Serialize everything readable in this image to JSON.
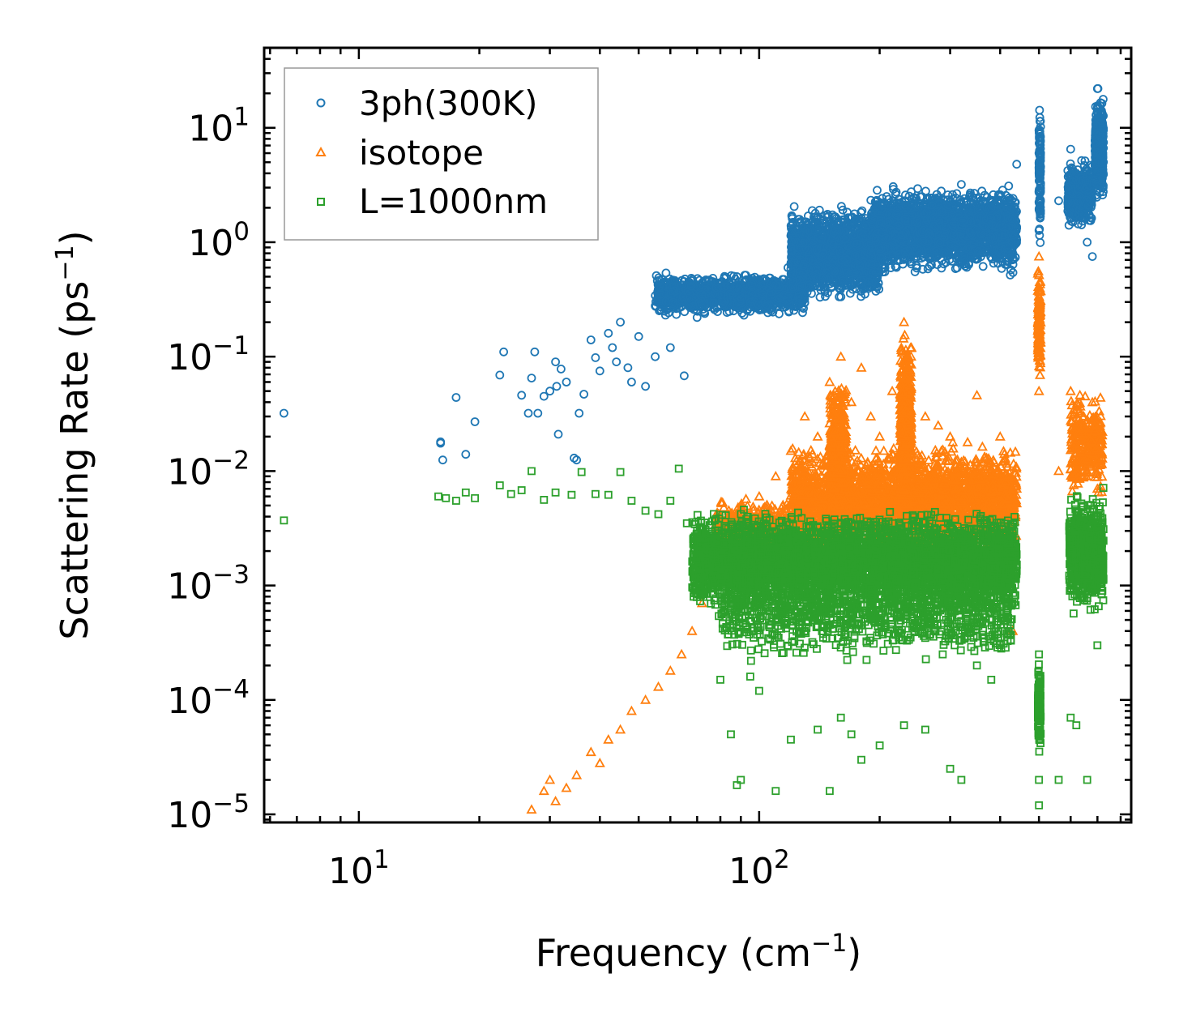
{
  "chart_data": {
    "type": "scatter",
    "xscale": "log",
    "yscale": "log",
    "xlabel": "Frequency (cm",
    "xlabel_sup": "−1",
    "xlabel_end": ")",
    "ylabel": "Scattering Rate (ps",
    "ylabel_sup": "−1",
    "ylabel_end": ")",
    "xlim": [
      5.8,
      850
    ],
    "ylim": [
      8.5e-06,
      50
    ],
    "legend_position": "top-left",
    "x_ticks": [
      {
        "value": 10,
        "base": "10",
        "exp": "1"
      },
      {
        "value": 100,
        "base": "10",
        "exp": "2"
      }
    ],
    "y_ticks": [
      {
        "value": 10,
        "base": "10",
        "exp": "1"
      },
      {
        "value": 1,
        "base": "10",
        "exp": "0"
      },
      {
        "value": 0.1,
        "base": "10",
        "exp": "−1"
      },
      {
        "value": 0.01,
        "base": "10",
        "exp": "−2"
      },
      {
        "value": 0.001,
        "base": "10",
        "exp": "−3"
      },
      {
        "value": 0.0001,
        "base": "10",
        "exp": "−4"
      },
      {
        "value": 1e-05,
        "base": "10",
        "exp": "−5"
      }
    ],
    "series": [
      {
        "name": "3ph(300K)",
        "marker": "circle",
        "color": "#1f77b4",
        "points": [
          [
            6.5,
            0.032
          ],
          [
            16,
            0.018
          ],
          [
            16,
            0.0175
          ],
          [
            16.2,
            0.0125
          ],
          [
            17.5,
            0.044
          ],
          [
            18.5,
            0.014
          ],
          [
            19.5,
            0.027
          ],
          [
            22.5,
            0.069
          ],
          [
            23,
            0.11
          ],
          [
            25.5,
            0.046
          ],
          [
            26.5,
            0.032
          ],
          [
            27,
            0.065
          ],
          [
            27.5,
            0.11
          ],
          [
            28,
            0.032
          ],
          [
            29,
            0.045
          ],
          [
            30,
            0.05
          ],
          [
            31,
            0.09
          ],
          [
            31.2,
            0.055
          ],
          [
            31.5,
            0.021
          ],
          [
            32,
            0.078
          ],
          [
            33,
            0.06
          ],
          [
            34.5,
            0.013
          ],
          [
            35,
            0.0125
          ],
          [
            35.5,
            0.032
          ],
          [
            36.5,
            0.047
          ],
          [
            38,
            0.14
          ],
          [
            39,
            0.098
          ],
          [
            40,
            0.075
          ],
          [
            42,
            0.16
          ],
          [
            43,
            0.12
          ],
          [
            44,
            0.09
          ],
          [
            45,
            0.2
          ],
          [
            47,
            0.08
          ],
          [
            48,
            0.06
          ],
          [
            50,
            0.15
          ],
          [
            52,
            0.055
          ],
          [
            55,
            0.1
          ],
          [
            58,
            0.25
          ],
          [
            60,
            0.12
          ],
          [
            61,
            0.3
          ],
          [
            65,
            0.068
          ],
          [
            70,
            0.22
          ],
          [
            72,
            0.35
          ],
          [
            78,
            0.4
          ],
          [
            82,
            0.28
          ],
          [
            88,
            0.5
          ],
          [
            95,
            0.3
          ],
          [
            102,
            0.35
          ],
          [
            110,
            0.42
          ],
          [
            118,
            0.6
          ],
          [
            125,
            0.8
          ],
          [
            135,
            1.1
          ],
          [
            145,
            0.9
          ],
          [
            155,
            1.3
          ],
          [
            165,
            1.1
          ],
          [
            175,
            1.6
          ],
          [
            185,
            1.4
          ],
          [
            195,
            1.8
          ],
          [
            210,
            1.5
          ],
          [
            225,
            2.2
          ],
          [
            240,
            1.9
          ],
          [
            255,
            2.5
          ],
          [
            270,
            2.1
          ],
          [
            285,
            2.8
          ],
          [
            300,
            2.3
          ],
          [
            320,
            3.2
          ],
          [
            340,
            2.5
          ],
          [
            360,
            2.8
          ],
          [
            380,
            2.0
          ],
          [
            400,
            2.6
          ],
          [
            420,
            3.1
          ],
          [
            440,
            4.8
          ],
          [
            500,
            9.5
          ],
          [
            500,
            6.0
          ],
          [
            500,
            4.5
          ],
          [
            560,
            2.3
          ],
          [
            600,
            6.5
          ],
          [
            620,
            3.5
          ],
          [
            660,
            1.0
          ],
          [
            680,
            0.75
          ],
          [
            700,
            22
          ],
          [
            700,
            15
          ],
          [
            720,
            10
          ],
          [
            720,
            4.5
          ]
        ]
      },
      {
        "name": "isotope",
        "marker": "triangle",
        "color": "#ff7f0e",
        "points": [
          [
            27,
            1.1e-05
          ],
          [
            29,
            1.6e-05
          ],
          [
            30,
            2e-05
          ],
          [
            31,
            1.3e-05
          ],
          [
            33,
            1.7e-05
          ],
          [
            35,
            2.2e-05
          ],
          [
            38,
            3.5e-05
          ],
          [
            40,
            2.8e-05
          ],
          [
            42,
            4.5e-05
          ],
          [
            45,
            5.5e-05
          ],
          [
            48,
            8e-05
          ],
          [
            52,
            0.0001
          ],
          [
            56,
            0.00013
          ],
          [
            60,
            0.00018
          ],
          [
            64,
            0.00025
          ],
          [
            68,
            0.0004
          ],
          [
            72,
            0.0007
          ],
          [
            76,
            0.0011
          ],
          [
            80,
            0.0018
          ],
          [
            85,
            0.0025
          ],
          [
            90,
            0.004
          ],
          [
            100,
            0.006
          ],
          [
            110,
            0.009
          ],
          [
            120,
            0.015
          ],
          [
            130,
            0.03
          ],
          [
            140,
            0.02
          ],
          [
            150,
            0.06
          ],
          [
            160,
            0.1
          ],
          [
            170,
            0.04
          ],
          [
            180,
            0.08
          ],
          [
            190,
            0.03
          ],
          [
            200,
            0.02
          ],
          [
            215,
            0.05
          ],
          [
            230,
            0.2
          ],
          [
            240,
            0.12
          ],
          [
            260,
            0.03
          ],
          [
            280,
            0.025
          ],
          [
            300,
            0.02
          ],
          [
            320,
            0.012
          ],
          [
            350,
            0.046
          ],
          [
            370,
            0.013
          ],
          [
            400,
            0.02
          ],
          [
            430,
            0.0004
          ],
          [
            500,
            0.75
          ],
          [
            500,
            0.3
          ],
          [
            500,
            0.1
          ],
          [
            500,
            0.05
          ],
          [
            560,
            0.01
          ],
          [
            600,
            0.05
          ],
          [
            650,
            0.025
          ],
          [
            700,
            0.007
          ],
          [
            720,
            0.022
          ]
        ]
      },
      {
        "name": "L=1000nm",
        "marker": "square",
        "color": "#2ca02c",
        "points": [
          [
            6.5,
            0.0037
          ],
          [
            15.8,
            0.006
          ],
          [
            16.5,
            0.0058
          ],
          [
            17.5,
            0.0055
          ],
          [
            18.5,
            0.0065
          ],
          [
            19.5,
            0.0058
          ],
          [
            22.5,
            0.0075
          ],
          [
            24,
            0.0063
          ],
          [
            25.5,
            0.0068
          ],
          [
            27,
            0.01
          ],
          [
            29,
            0.0056
          ],
          [
            31,
            0.0065
          ],
          [
            34,
            0.0062
          ],
          [
            36,
            0.0098
          ],
          [
            39,
            0.0063
          ],
          [
            42,
            0.0062
          ],
          [
            45,
            0.0098
          ],
          [
            48,
            0.0055
          ],
          [
            52,
            0.0045
          ],
          [
            56,
            0.0042
          ],
          [
            60,
            0.0055
          ],
          [
            63,
            0.0105
          ],
          [
            66,
            0.0035
          ],
          [
            70,
            0.003
          ],
          [
            75,
            0.0022
          ],
          [
            80,
            0.00015
          ],
          [
            85,
            5e-05
          ],
          [
            88,
            1.8e-05
          ],
          [
            90,
            2e-05
          ],
          [
            95,
            0.00016
          ],
          [
            100,
            0.00012
          ],
          [
            110,
            1.6e-05
          ],
          [
            120,
            4.5e-05
          ],
          [
            130,
            0.0004
          ],
          [
            140,
            5.5e-05
          ],
          [
            150,
            1.6e-05
          ],
          [
            160,
            7e-05
          ],
          [
            170,
            5e-05
          ],
          [
            180,
            3e-05
          ],
          [
            200,
            4e-05
          ],
          [
            230,
            6e-05
          ],
          [
            260,
            5.5e-05
          ],
          [
            300,
            2.5e-05
          ],
          [
            320,
            2e-05
          ],
          [
            350,
            0.0002
          ],
          [
            380,
            0.00015
          ],
          [
            420,
            0.0004
          ],
          [
            500,
            1.2e-05
          ],
          [
            500,
            2e-05
          ],
          [
            500,
            0.0001
          ],
          [
            500,
            0.00025
          ],
          [
            560,
            2e-05
          ],
          [
            600,
            7e-05
          ],
          [
            620,
            6e-05
          ],
          [
            660,
            2e-05
          ],
          [
            700,
            0.0003
          ],
          [
            720,
            0.0009
          ]
        ]
      }
    ],
    "bands": [
      {
        "series": 0,
        "lo": 0.22,
        "hi": 0.55,
        "x0": 55,
        "x1": 130,
        "count": 1200,
        "seed": 11
      },
      {
        "series": 0,
        "lo": 0.3,
        "hi": 2.2,
        "x0": 120,
        "x1": 200,
        "count": 1700,
        "seed": 12
      },
      {
        "series": 0,
        "lo": 0.5,
        "hi": 3.3,
        "x0": 190,
        "x1": 440,
        "count": 2400,
        "seed": 13
      },
      {
        "series": 0,
        "lo": 0.8,
        "hi": 20,
        "x0": 500,
        "x1": 505,
        "count": 120,
        "seed": 14
      },
      {
        "series": 0,
        "lo": 1.2,
        "hi": 6,
        "x0": 590,
        "x1": 680,
        "count": 400,
        "seed": 15
      },
      {
        "series": 0,
        "lo": 2,
        "hi": 24,
        "x0": 690,
        "x1": 725,
        "count": 400,
        "seed": 16
      },
      {
        "series": 1,
        "lo": 0.0012,
        "hi": 0.006,
        "x0": 78,
        "x1": 120,
        "count": 900,
        "seed": 21
      },
      {
        "series": 1,
        "lo": 0.0015,
        "hi": 0.02,
        "x0": 120,
        "x1": 440,
        "count": 2800,
        "seed": 22
      },
      {
        "series": 1,
        "lo": 0.003,
        "hi": 0.08,
        "x0": 150,
        "x1": 165,
        "count": 400,
        "seed": 23
      },
      {
        "series": 1,
        "lo": 0.003,
        "hi": 0.2,
        "x0": 225,
        "x1": 240,
        "count": 500,
        "seed": 24
      },
      {
        "series": 1,
        "lo": 0.05,
        "hi": 0.7,
        "x0": 497,
        "x1": 505,
        "count": 120,
        "seed": 25
      },
      {
        "series": 1,
        "lo": 0.005,
        "hi": 0.06,
        "x0": 600,
        "x1": 720,
        "count": 300,
        "seed": 26
      },
      {
        "series": 2,
        "lo": 0.0005,
        "hi": 0.005,
        "x0": 68,
        "x1": 440,
        "count": 4500,
        "seed": 31
      },
      {
        "series": 2,
        "lo": 0.0002,
        "hi": 0.0015,
        "x0": 80,
        "x1": 430,
        "count": 900,
        "seed": 32
      },
      {
        "series": 2,
        "lo": 0.0005,
        "hi": 0.0075,
        "x0": 595,
        "x1": 725,
        "count": 700,
        "seed": 33
      },
      {
        "series": 2,
        "lo": 3e-05,
        "hi": 0.00025,
        "x0": 497,
        "x1": 505,
        "count": 120,
        "seed": 34
      }
    ]
  }
}
